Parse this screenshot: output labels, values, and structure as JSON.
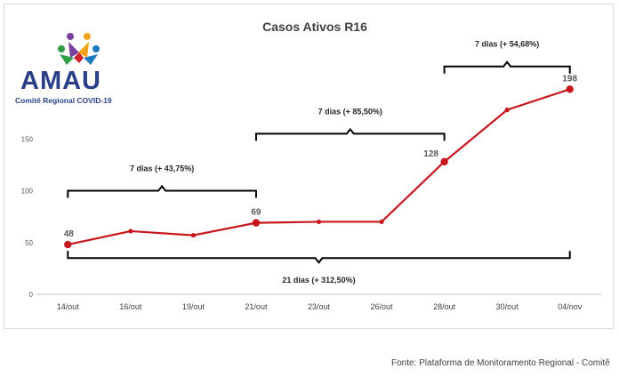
{
  "logo": {
    "word": "AMAU",
    "subtitle": "Comitê Regional COVID-19"
  },
  "source": "Fonte: Plataforma de Monitoramento Regional - Comitê",
  "colors": {
    "series": "#c8161d",
    "brackets": "#000000",
    "logo_blue": "#2b3f86"
  },
  "chart_data": {
    "type": "line",
    "title": "Casos Ativos R16",
    "categories": [
      "14/out",
      "16/out",
      "19/out",
      "21/out",
      "23/out",
      "26/out",
      "28/out",
      "30/out",
      "04/nov"
    ],
    "series": [
      {
        "values": [
          48,
          61,
          57,
          69,
          70,
          70,
          128,
          178,
          198
        ]
      }
    ],
    "data_labels": [
      {
        "index": 0,
        "text": "48"
      },
      {
        "index": 3,
        "text": "69"
      },
      {
        "index": 6,
        "text": "128"
      },
      {
        "index": 8,
        "text": "198"
      }
    ],
    "yticks": [
      0,
      50,
      100,
      150
    ],
    "ytick_labels": [
      "0",
      "50",
      "100",
      "150"
    ],
    "ylim": [
      0,
      200
    ],
    "xlabel": "",
    "ylabel": "",
    "grid": false,
    "annotations": [
      {
        "from": 0,
        "to": 3,
        "level": 100,
        "text": "7 dias (+ 43,75%)"
      },
      {
        "from": 3,
        "to": 6,
        "level": 155,
        "text": "7 dias (+ 85,50%)"
      },
      {
        "from": 6,
        "to": 8,
        "level": 220,
        "text": "7 dias (+ 54,68%)"
      },
      {
        "from": 0,
        "to": 8,
        "level": 35,
        "text": "21 dias (+ 312,50%)",
        "below": true
      }
    ]
  }
}
